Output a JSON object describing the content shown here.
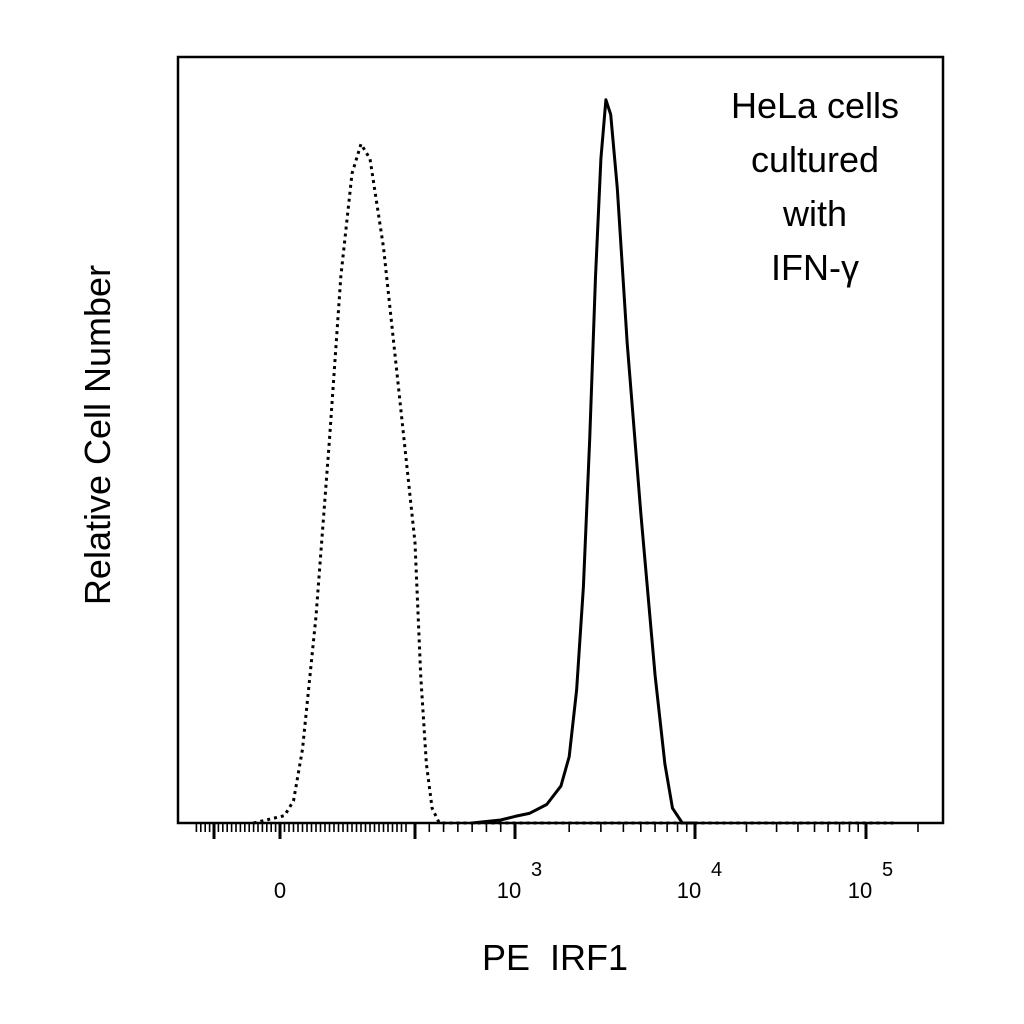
{
  "chart_data": {
    "type": "line",
    "title": "",
    "xlabel": "PE  IRF1",
    "ylabel": "Relative Cell Number",
    "x_scale": "biexponential",
    "x_range": [
      -200,
      200000
    ],
    "ylim": [
      0,
      100
    ],
    "grid": false,
    "legend": "none",
    "x_tick_labels": [
      {
        "value": 0,
        "base": "0",
        "exp": ""
      },
      {
        "value": 1000,
        "base": "10",
        "exp": "3"
      },
      {
        "value": 10000,
        "base": "10",
        "exp": "4"
      },
      {
        "value": 100000,
        "base": "10",
        "exp": "5"
      }
    ],
    "annotation_lines": [
      "HeLa cells",
      "cultured",
      "with",
      "IFN-γ"
    ],
    "series": [
      {
        "style": "dotted",
        "color": "#000000",
        "points": [
          [
            -60,
            0
          ],
          [
            10,
            1
          ],
          [
            30,
            3
          ],
          [
            50,
            10
          ],
          [
            80,
            28
          ],
          [
            110,
            52
          ],
          [
            135,
            74
          ],
          [
            160,
            88
          ],
          [
            180,
            92
          ],
          [
            200,
            90
          ],
          [
            230,
            78
          ],
          [
            265,
            58
          ],
          [
            300,
            38
          ],
          [
            340,
            20
          ],
          [
            380,
            8
          ],
          [
            420,
            2
          ],
          [
            470,
            0
          ],
          [
            600,
            0
          ],
          [
            2000,
            0
          ],
          [
            10000,
            0
          ],
          [
            150000,
            0
          ]
        ]
      },
      {
        "style": "solid",
        "color": "#000000",
        "points": [
          [
            700,
            0
          ],
          [
            900,
            0.4
          ],
          [
            1000,
            0.9
          ],
          [
            1200,
            1.3
          ],
          [
            1500,
            2.5
          ],
          [
            1800,
            5
          ],
          [
            2000,
            9
          ],
          [
            2200,
            18
          ],
          [
            2400,
            32
          ],
          [
            2600,
            52
          ],
          [
            2800,
            74
          ],
          [
            3000,
            90
          ],
          [
            3200,
            98
          ],
          [
            3400,
            96
          ],
          [
            3700,
            86
          ],
          [
            4200,
            65
          ],
          [
            5000,
            42
          ],
          [
            6000,
            20
          ],
          [
            6800,
            8
          ],
          [
            7500,
            2
          ],
          [
            8500,
            0
          ],
          [
            10000,
            0
          ]
        ]
      }
    ]
  }
}
